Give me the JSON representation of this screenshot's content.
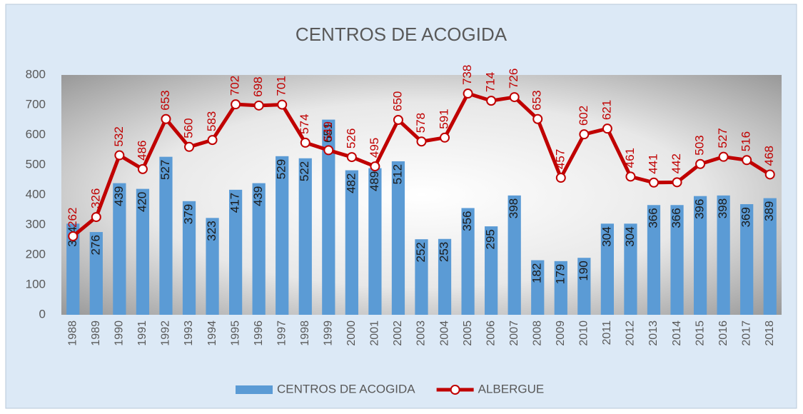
{
  "chart_data": {
    "type": "bar",
    "title": "CENTROS DE ACOGIDA",
    "categories": [
      "1988",
      "1989",
      "1990",
      "1991",
      "1992",
      "1993",
      "1994",
      "1995",
      "1996",
      "1997",
      "1998",
      "1999",
      "2000",
      "2001",
      "2002",
      "2003",
      "2004",
      "2005",
      "2006",
      "2007",
      "2008",
      "2009",
      "2010",
      "2011",
      "2012",
      "2013",
      "2014",
      "2015",
      "2016",
      "2017",
      "2018"
    ],
    "series": [
      {
        "name": "CENTROS DE ACOGIDA",
        "type": "bar",
        "color": "#5b9bd5",
        "values": [
          304,
          276,
          439,
          420,
          527,
          379,
          323,
          417,
          439,
          529,
          522,
          651,
          482,
          489,
          512,
          252,
          253,
          356,
          295,
          398,
          182,
          179,
          190,
          304,
          304,
          366,
          366,
          396,
          398,
          369,
          389
        ]
      },
      {
        "name": "ALBERGUE",
        "type": "line",
        "color": "#c00000",
        "values": [
          262,
          326,
          532,
          486,
          653,
          560,
          583,
          702,
          698,
          701,
          574,
          549,
          526,
          495,
          650,
          578,
          591,
          738,
          714,
          726,
          653,
          457,
          602,
          621,
          461,
          441,
          442,
          503,
          527,
          516,
          468
        ]
      }
    ],
    "ylim": [
      0,
      800
    ],
    "yticks": [
      0,
      100,
      200,
      300,
      400,
      500,
      600,
      700,
      800
    ],
    "grid": false,
    "legend": "bottom"
  }
}
